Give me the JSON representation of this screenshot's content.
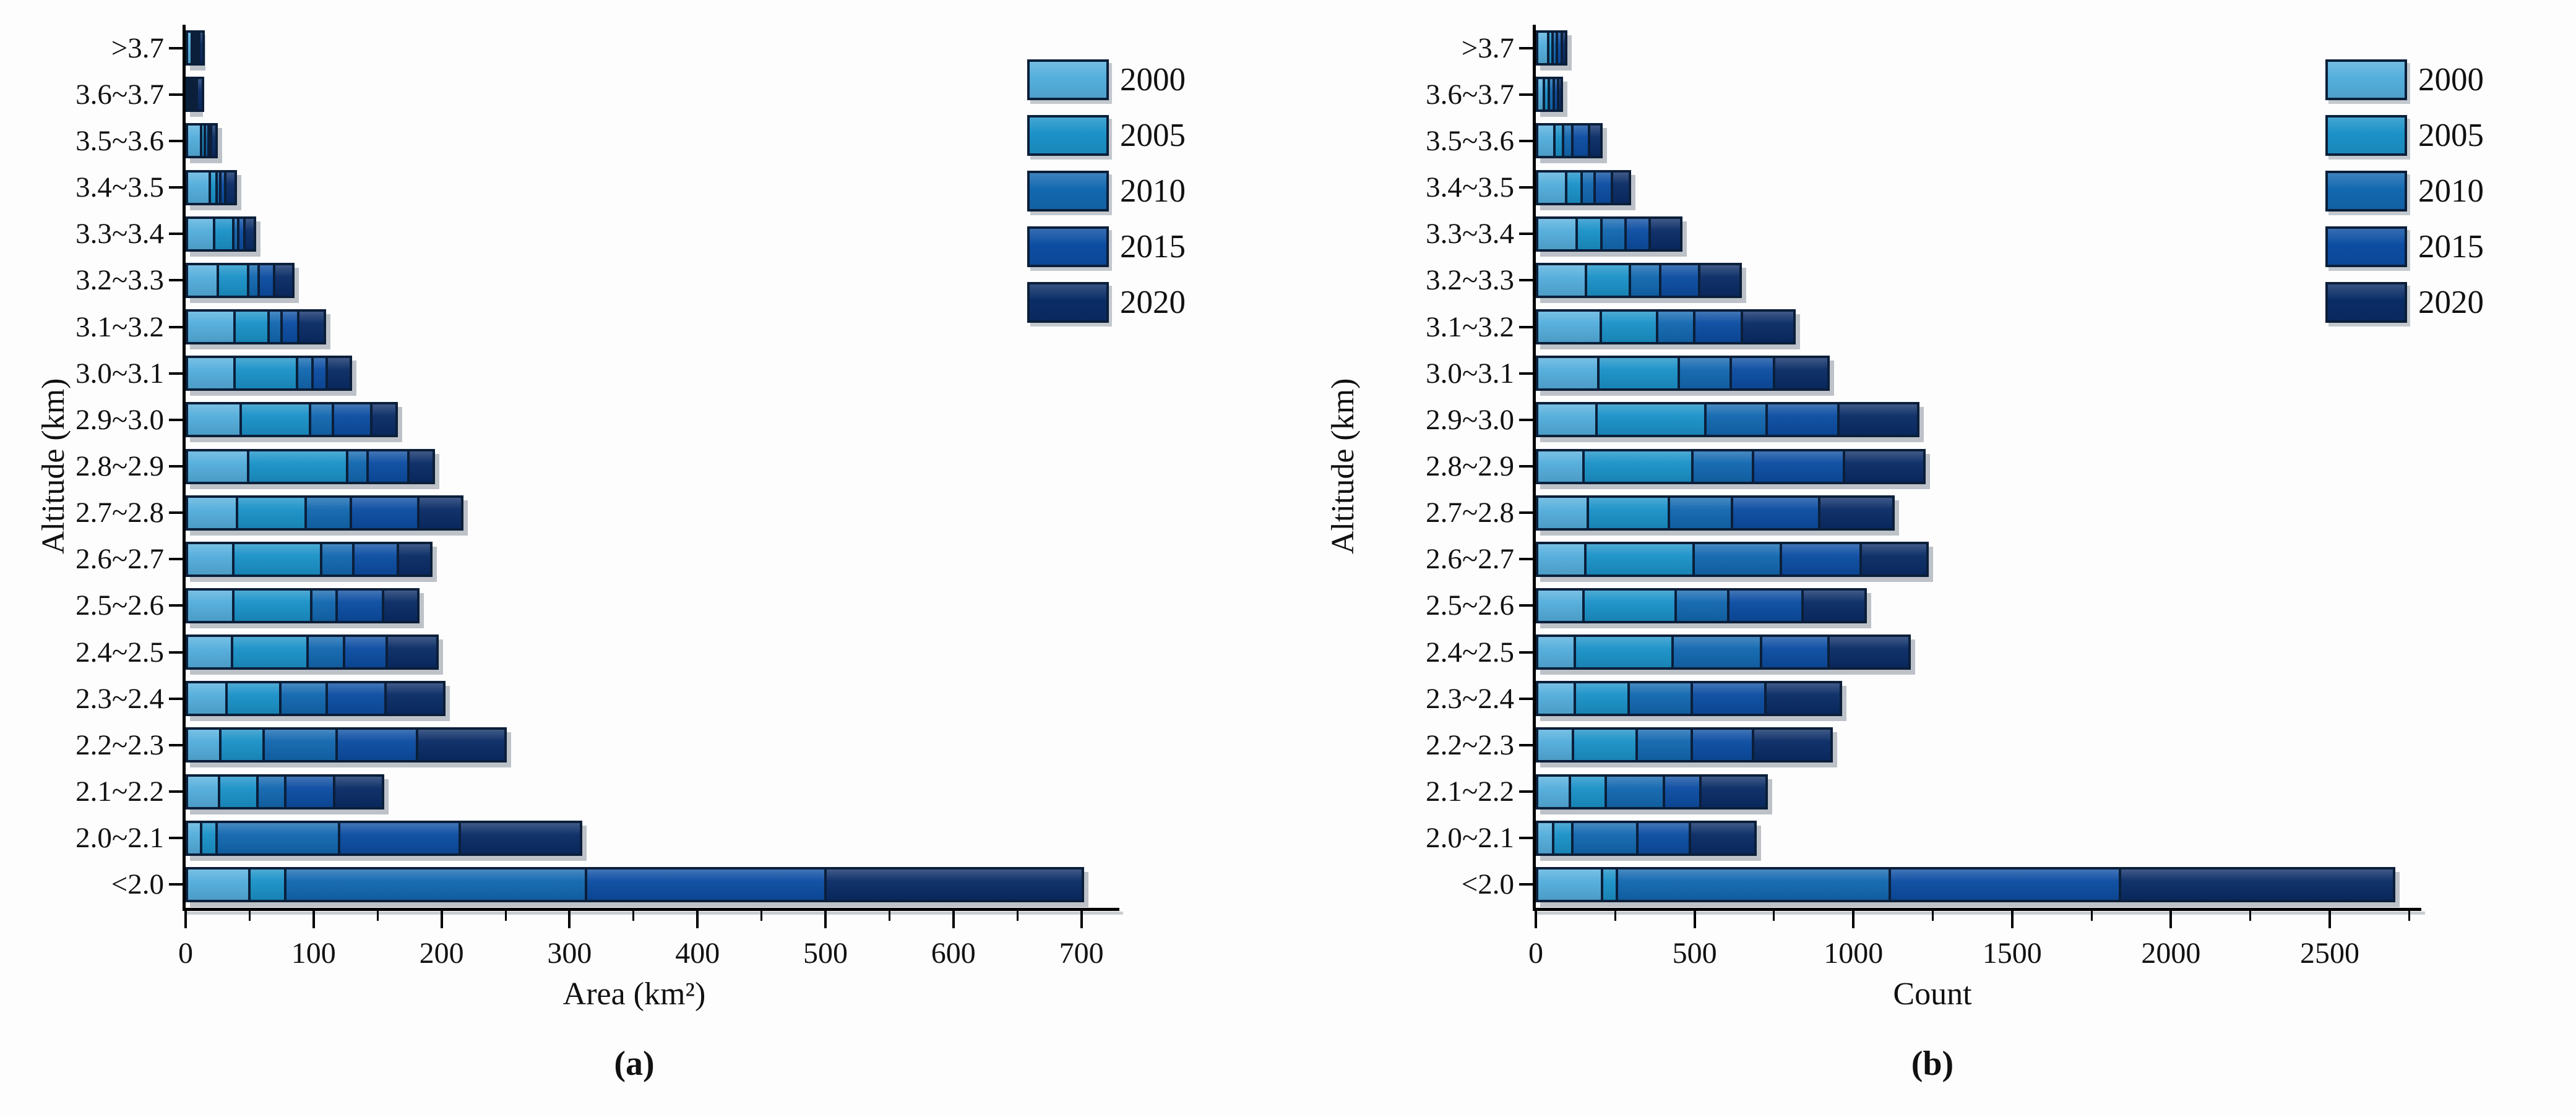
{
  "figure": {
    "background": "#fdfdfd",
    "caption_a": "(a)",
    "caption_b": "(b)"
  },
  "legend": {
    "position": "top-right",
    "border_color": "#0B1F3A",
    "entries": [
      {
        "label": "2000",
        "color": "#54AEDC"
      },
      {
        "label": "2005",
        "color": "#1B92C8"
      },
      {
        "label": "2010",
        "color": "#1368B0"
      },
      {
        "label": "2015",
        "color": "#0C4DA2"
      },
      {
        "label": "2020",
        "color": "#0A2C66"
      }
    ]
  },
  "chart_data": [
    {
      "id": "a",
      "type": "bar",
      "stacked": true,
      "orientation": "horizontal",
      "title": "",
      "xlabel": "Area (km²)",
      "ylabel": "Altitude (km)",
      "caption": "(a)",
      "grid": false,
      "xlim": [
        0,
        720
      ],
      "x_major_ticks": [
        0,
        100,
        200,
        300,
        400,
        500,
        600,
        700
      ],
      "x_minor_ticks": [
        50,
        150,
        250,
        350,
        450,
        550,
        650
      ],
      "categories": [
        ">3.7",
        "3.6~3.7",
        "3.5~3.6",
        "3.4~3.5",
        "3.3~3.4",
        "3.2~3.3",
        "3.1~3.2",
        "3.0~3.1",
        "2.9~3.0",
        "2.8~2.9",
        "2.7~2.8",
        "2.6~2.7",
        "2.5~2.6",
        "2.4~2.5",
        "2.3~2.4",
        "2.2~2.3",
        "2.1~2.2",
        "2.0~2.1",
        "<2.0"
      ],
      "series": [
        {
          "name": "2000",
          "values": [
            6,
            1,
            13,
            20,
            23,
            26,
            39,
            39,
            44,
            50,
            41,
            38,
            38,
            37,
            33,
            28,
            27,
            13,
            51
          ]
        },
        {
          "name": "2005",
          "values": [
            1,
            1,
            3,
            5,
            15,
            24,
            27,
            49,
            54,
            77,
            54,
            69,
            61,
            59,
            42,
            34,
            30,
            12,
            28
          ]
        },
        {
          "name": "2010",
          "values": [
            1,
            1,
            3,
            3,
            4,
            8,
            10,
            12,
            18,
            16,
            35,
            25,
            20,
            29,
            36,
            57,
            22,
            96,
            235
          ]
        },
        {
          "name": "2015",
          "values": [
            1,
            2,
            2,
            4,
            5,
            12,
            13,
            11,
            30,
            32,
            53,
            35,
            36,
            33,
            46,
            63,
            38,
            94,
            187
          ]
        },
        {
          "name": "2020",
          "values": [
            3,
            5,
            4,
            8,
            8,
            15,
            21,
            19,
            20,
            20,
            34,
            26,
            28,
            40,
            46,
            69,
            38,
            95,
            201
          ]
        }
      ]
    },
    {
      "id": "b",
      "type": "bar",
      "stacked": true,
      "orientation": "horizontal",
      "title": "",
      "xlabel": "Count",
      "ylabel": "Altitude (km)",
      "caption": "(b)",
      "grid": false,
      "xlim": [
        0,
        2750
      ],
      "x_major_ticks": [
        0,
        500,
        1000,
        1500,
        2000,
        2500
      ],
      "x_minor_ticks": [
        250,
        750,
        1250,
        1750,
        2250,
        2750
      ],
      "categories": [
        ">3.7",
        "3.6~3.7",
        "3.5~3.6",
        "3.4~3.5",
        "3.3~3.4",
        "3.2~3.3",
        "3.1~3.2",
        "3.0~3.1",
        "2.9~3.0",
        "2.8~2.9",
        "2.7~2.8",
        "2.6~2.7",
        "2.5~2.6",
        "2.4~2.5",
        "2.3~2.4",
        "2.2~2.3",
        "2.1~2.2",
        "2.0~2.1",
        "<2.0"
      ],
      "series": [
        {
          "name": "2000",
          "values": [
            43,
            30,
            62,
            100,
            133,
            162,
            208,
            201,
            195,
            153,
            168,
            160,
            154,
            126,
            126,
            120,
            111,
            59,
            212
          ]
        },
        {
          "name": "2005",
          "values": [
            14,
            15,
            28,
            48,
            77,
            138,
            178,
            253,
            343,
            343,
            254,
            341,
            290,
            308,
            170,
            201,
            114,
            59,
            48
          ]
        },
        {
          "name": "2010",
          "values": [
            14,
            15,
            29,
            42,
            76,
            95,
            117,
            164,
            192,
            192,
            200,
            274,
            165,
            280,
            198,
            173,
            182,
            206,
            858
          ]
        },
        {
          "name": "2015",
          "values": [
            14,
            15,
            52,
            53,
            76,
            124,
            150,
            137,
            226,
            287,
            275,
            252,
            234,
            212,
            232,
            193,
            115,
            166,
            725
          ]
        },
        {
          "name": "2020",
          "values": [
            15,
            11,
            39,
            57,
            100,
            129,
            165,
            171,
            253,
            253,
            234,
            211,
            200,
            254,
            239,
            249,
            209,
            206,
            863
          ]
        }
      ]
    }
  ]
}
